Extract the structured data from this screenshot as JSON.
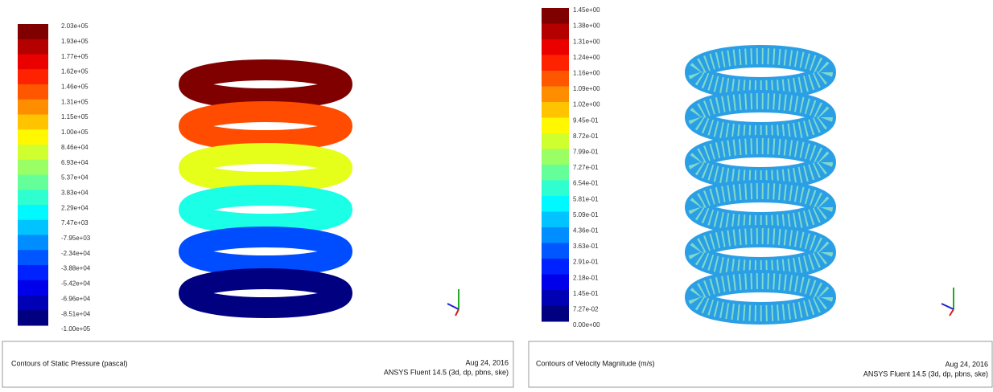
{
  "panels": [
    {
      "legend_labels": [
        "2.03e+05",
        "1.93e+05",
        "1.77e+05",
        "1.62e+05",
        "1.46e+05",
        "1.31e+05",
        "1.15e+05",
        "1.00e+05",
        "8.46e+04",
        "6.93e+04",
        "5.37e+04",
        "3.83e+04",
        "2.29e+04",
        "7.47e+03",
        "-7.95e+03",
        "-2.34e+04",
        "-3.88e+04",
        "-5.42e+04",
        "-6.96e+04",
        "-8.51e+04",
        "-1.00e+05"
      ],
      "caption": "Contours of Static Pressure (pascal)",
      "date": "Aug 24, 2016",
      "software": "ANSYS Fluent 14.5 (3d, dp, pbns, ske)"
    },
    {
      "legend_labels": [
        "1.45e+00",
        "1.38e+00",
        "1.31e+00",
        "1.24e+00",
        "1.16e+00",
        "1.09e+00",
        "1.02e+00",
        "9.45e-01",
        "8.72e-01",
        "7.99e-01",
        "7.27e-01",
        "6.54e-01",
        "5.81e-01",
        "5.09e-01",
        "4.36e-01",
        "3.63e-01",
        "2.91e-01",
        "2.18e-01",
        "1.45e-01",
        "7.27e-02",
        "0.00e+00"
      ],
      "caption": "Contours of Velocity Magnitude (m/s)",
      "date": "Aug 24, 2016",
      "software": "ANSYS Fluent 14.5 (3d, dp, pbns, ske)"
    }
  ]
}
